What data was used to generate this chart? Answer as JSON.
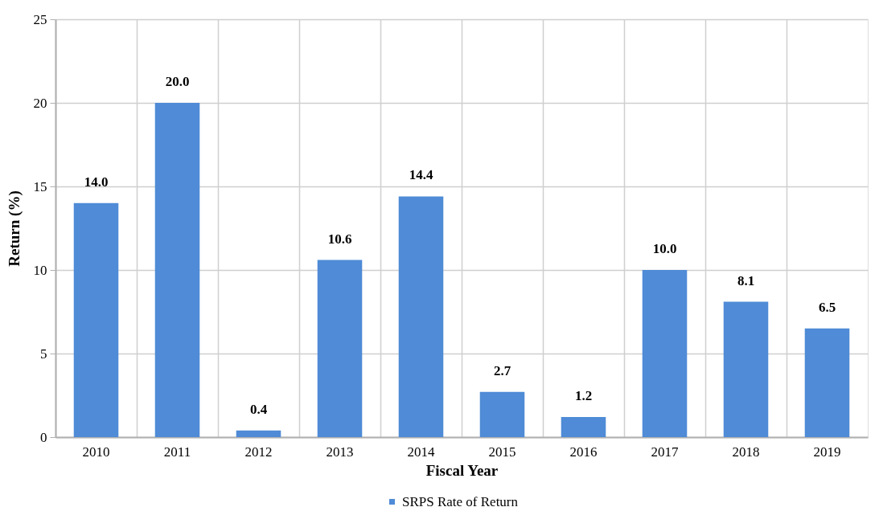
{
  "chart_data": {
    "type": "bar",
    "xlabel": "Fiscal Year",
    "ylabel": "Return (%)",
    "categories": [
      "2010",
      "2011",
      "2012",
      "2013",
      "2014",
      "2015",
      "2016",
      "2017",
      "2018",
      "2019"
    ],
    "series": [
      {
        "name": "SRPS Rate of Return",
        "color": "#4f8bd6",
        "values": [
          14.0,
          20.0,
          0.4,
          10.6,
          14.4,
          2.7,
          1.2,
          10.0,
          8.1,
          6.5
        ],
        "value_labels": [
          "14.0",
          "20.0",
          "0.4",
          "10.6",
          "14.4",
          "2.7",
          "1.2",
          "10.0",
          "8.1",
          "6.5"
        ]
      }
    ],
    "ylim": [
      0,
      25
    ],
    "yticks": [
      0,
      5,
      10,
      15,
      20,
      25
    ],
    "grid": true,
    "legend": "bottom"
  }
}
